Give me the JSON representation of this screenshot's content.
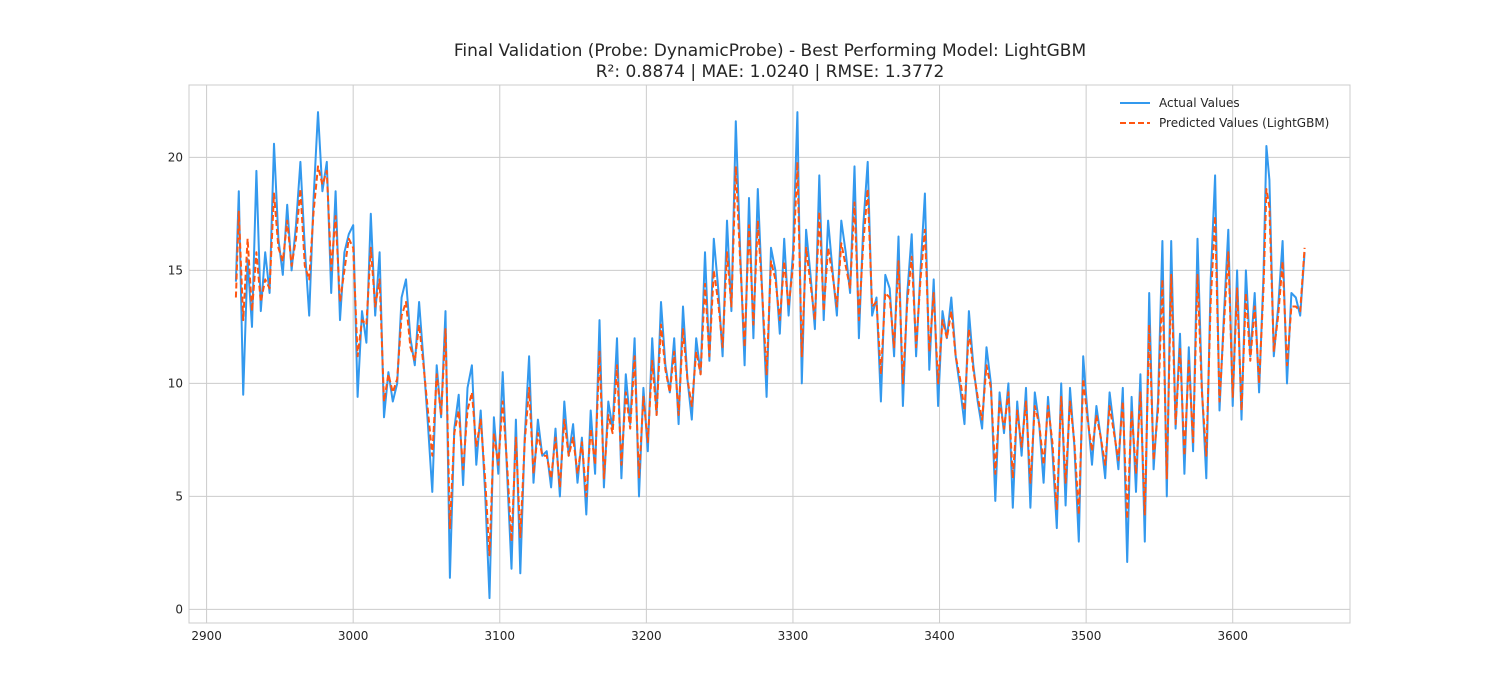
{
  "chart_data": {
    "type": "line",
    "title": "Final Validation (Probe: DynamicProbe) - Best Performing Model: LightGBM",
    "subtitle": "R²: 0.8874  |  MAE: 1.0240  |  RMSE: 1.3772",
    "xlabel": "",
    "ylabel": "",
    "xlim": [
      2888,
      3680
    ],
    "ylim": [
      -0.6,
      23.2
    ],
    "xticks": [
      2900,
      3000,
      3100,
      3200,
      3300,
      3400,
      3500,
      3600
    ],
    "yticks": [
      0,
      5,
      10,
      15,
      20
    ],
    "grid": true,
    "legend_position": "top-right",
    "series": [
      {
        "name": "Actual Values",
        "color": "#3399ee",
        "style": "solid",
        "x": [
          2920,
          2922,
          2925,
          2928,
          2931,
          2934,
          2937,
          2940,
          2943,
          2946,
          2949,
          2952,
          2955,
          2958,
          2961,
          2964,
          2967,
          2970,
          2973,
          2976,
          2979,
          2982,
          2985,
          2988,
          2991,
          2994,
          2997,
          3000,
          3003,
          3006,
          3009,
          3012,
          3015,
          3018,
          3021,
          3024,
          3027,
          3030,
          3033,
          3036,
          3039,
          3042,
          3045,
          3048,
          3051,
          3054,
          3057,
          3060,
          3063,
          3066,
          3069,
          3072,
          3075,
          3078,
          3081,
          3084,
          3087,
          3090,
          3093,
          3096,
          3099,
          3102,
          3105,
          3108,
          3111,
          3114,
          3117,
          3120,
          3123,
          3126,
          3129,
          3132,
          3135,
          3138,
          3141,
          3144,
          3147,
          3150,
          3153,
          3156,
          3159,
          3162,
          3165,
          3168,
          3171,
          3174,
          3177,
          3180,
          3183,
          3186,
          3189,
          3192,
          3195,
          3198,
          3201,
          3204,
          3207,
          3210,
          3213,
          3216,
          3219,
          3222,
          3225,
          3228,
          3231,
          3234,
          3237,
          3240,
          3243,
          3246,
          3249,
          3252,
          3255,
          3258,
          3261,
          3264,
          3267,
          3270,
          3273,
          3276,
          3279,
          3282,
          3285,
          3288,
          3291,
          3294,
          3297,
          3300,
          3303,
          3306,
          3309,
          3312,
          3315,
          3318,
          3321,
          3324,
          3327,
          3330,
          3333,
          3336,
          3339,
          3342,
          3345,
          3348,
          3351,
          3354,
          3357,
          3360,
          3363,
          3366,
          3369,
          3372,
          3375,
          3378,
          3381,
          3384,
          3387,
          3390,
          3393,
          3396,
          3399,
          3402,
          3405,
          3408,
          3411,
          3414,
          3417,
          3420,
          3423,
          3426,
          3429,
          3432,
          3435,
          3438,
          3441,
          3444,
          3447,
          3450,
          3453,
          3456,
          3459,
          3462,
          3465,
          3468,
          3471,
          3474,
          3477,
          3480,
          3483,
          3486,
          3489,
          3492,
          3495,
          3498,
          3501,
          3504,
          3507,
          3510,
          3513,
          3516,
          3519,
          3522,
          3525,
          3528,
          3531,
          3534,
          3537,
          3540,
          3543,
          3546,
          3549,
          3552,
          3555,
          3558,
          3561,
          3564,
          3567,
          3570,
          3573,
          3576,
          3579,
          3582,
          3585,
          3588,
          3591,
          3594,
          3597,
          3600,
          3603,
          3606,
          3609,
          3612,
          3615,
          3618,
          3621,
          3623,
          3625,
          3628,
          3631,
          3634,
          3637,
          3640,
          3643,
          3646,
          3649
        ],
        "values": [
          14.5,
          18.5,
          9.5,
          15.5,
          12.5,
          19.4,
          13.2,
          15.8,
          14.0,
          20.6,
          16.4,
          14.8,
          17.9,
          15.0,
          17.0,
          19.8,
          16.0,
          13.0,
          18.2,
          22.0,
          18.5,
          19.8,
          14.0,
          18.5,
          12.8,
          15.8,
          16.6,
          17.0,
          9.4,
          13.2,
          11.8,
          17.5,
          13.0,
          15.8,
          8.5,
          10.5,
          9.2,
          10.0,
          13.8,
          14.6,
          12.0,
          10.8,
          13.6,
          11.0,
          8.2,
          5.2,
          10.8,
          8.5,
          13.2,
          1.4,
          8.0,
          9.5,
          5.5,
          9.8,
          10.8,
          6.4,
          8.8,
          5.2,
          0.5,
          8.5,
          6.0,
          10.5,
          6.0,
          1.8,
          8.4,
          1.6,
          7.6,
          11.2,
          5.6,
          8.4,
          6.8,
          7.0,
          5.4,
          8.0,
          5.0,
          9.2,
          6.8,
          8.2,
          5.6,
          7.6,
          4.2,
          8.8,
          6.0,
          12.8,
          5.4,
          9.2,
          8.0,
          12.0,
          5.8,
          10.4,
          8.2,
          12.0,
          5.0,
          9.8,
          7.0,
          12.0,
          8.6,
          13.6,
          10.8,
          9.6,
          12.0,
          8.2,
          13.4,
          10.2,
          8.4,
          12.0,
          10.4,
          15.8,
          11.0,
          16.4,
          14.2,
          11.2,
          17.2,
          13.2,
          21.6,
          15.8,
          10.8,
          18.2,
          12.0,
          18.6,
          14.0,
          9.4,
          16.0,
          15.0,
          12.2,
          16.4,
          13.0,
          15.8,
          22.0,
          10.0,
          16.8,
          14.8,
          12.4,
          19.2,
          12.8,
          17.2,
          15.0,
          13.0,
          17.2,
          15.8,
          14.0,
          19.6,
          12.0,
          17.0,
          19.8,
          13.0,
          13.8,
          9.2,
          14.8,
          14.2,
          11.2,
          16.5,
          9.0,
          14.0,
          16.6,
          11.2,
          15.0,
          18.4,
          10.6,
          14.6,
          9.0,
          13.2,
          12.0,
          13.8,
          11.2,
          9.8,
          8.2,
          13.2,
          10.8,
          9.2,
          8.0,
          11.6,
          10.0,
          4.8,
          9.6,
          7.8,
          10.0,
          4.5,
          9.2,
          6.8,
          9.8,
          4.5,
          9.6,
          8.2,
          5.6,
          9.4,
          7.0,
          3.6,
          10.0,
          4.6,
          9.8,
          7.2,
          3.0,
          11.2,
          8.6,
          6.4,
          9.0,
          7.6,
          5.8,
          9.6,
          8.0,
          6.2,
          9.8,
          2.1,
          9.4,
          5.2,
          10.4,
          3.0,
          14.0,
          6.2,
          9.2,
          16.3,
          5.0,
          16.3,
          8.0,
          12.2,
          6.0,
          11.6,
          7.0,
          16.4,
          9.8,
          5.8,
          14.6,
          19.2,
          8.8,
          13.0,
          16.8,
          9.0,
          15.0,
          8.4,
          15.0,
          11.2,
          14.0,
          9.6,
          14.8,
          20.5,
          19.0,
          11.2,
          13.4,
          16.3,
          10.0,
          14.0,
          13.8,
          13.0,
          15.8
        ],
        "x_lim_note": ""
      },
      {
        "name": "Predicted Values (LightGBM)",
        "color": "#ff5511",
        "style": "dashed",
        "x": [
          2920,
          2922,
          2925,
          2928,
          2931,
          2934,
          2937,
          2940,
          2943,
          2946,
          2949,
          2952,
          2955,
          2958,
          2961,
          2964,
          2967,
          2970,
          2973,
          2976,
          2979,
          2982,
          2985,
          2988,
          2991,
          2994,
          2997,
          3000,
          3003,
          3006,
          3009,
          3012,
          3015,
          3018,
          3021,
          3024,
          3027,
          3030,
          3033,
          3036,
          3039,
          3042,
          3045,
          3048,
          3051,
          3054,
          3057,
          3060,
          3063,
          3066,
          3069,
          3072,
          3075,
          3078,
          3081,
          3084,
          3087,
          3090,
          3093,
          3096,
          3099,
          3102,
          3105,
          3108,
          3111,
          3114,
          3117,
          3120,
          3123,
          3126,
          3129,
          3132,
          3135,
          3138,
          3141,
          3144,
          3147,
          3150,
          3153,
          3156,
          3159,
          3162,
          3165,
          3168,
          3171,
          3174,
          3177,
          3180,
          3183,
          3186,
          3189,
          3192,
          3195,
          3198,
          3201,
          3204,
          3207,
          3210,
          3213,
          3216,
          3219,
          3222,
          3225,
          3228,
          3231,
          3234,
          3237,
          3240,
          3243,
          3246,
          3249,
          3252,
          3255,
          3258,
          3261,
          3264,
          3267,
          3270,
          3273,
          3276,
          3279,
          3282,
          3285,
          3288,
          3291,
          3294,
          3297,
          3300,
          3303,
          3306,
          3309,
          3312,
          3315,
          3318,
          3321,
          3324,
          3327,
          3330,
          3333,
          3336,
          3339,
          3342,
          3345,
          3348,
          3351,
          3354,
          3357,
          3360,
          3363,
          3366,
          3369,
          3372,
          3375,
          3378,
          3381,
          3384,
          3387,
          3390,
          3393,
          3396,
          3399,
          3402,
          3405,
          3408,
          3411,
          3414,
          3417,
          3420,
          3423,
          3426,
          3429,
          3432,
          3435,
          3438,
          3441,
          3444,
          3447,
          3450,
          3453,
          3456,
          3459,
          3462,
          3465,
          3468,
          3471,
          3474,
          3477,
          3480,
          3483,
          3486,
          3489,
          3492,
          3495,
          3498,
          3501,
          3504,
          3507,
          3510,
          3513,
          3516,
          3519,
          3522,
          3525,
          3528,
          3531,
          3534,
          3537,
          3540,
          3543,
          3546,
          3549,
          3552,
          3555,
          3558,
          3561,
          3564,
          3567,
          3570,
          3573,
          3576,
          3579,
          3582,
          3585,
          3588,
          3591,
          3594,
          3597,
          3600,
          3603,
          3606,
          3609,
          3612,
          3615,
          3618,
          3621,
          3623,
          3625,
          3628,
          3631,
          3634,
          3637,
          3640,
          3643,
          3646,
          3649
        ],
        "values": [
          13.8,
          17.6,
          12.8,
          16.4,
          13.2,
          15.8,
          13.6,
          14.6,
          14.2,
          18.4,
          16.0,
          15.4,
          17.2,
          15.2,
          16.4,
          18.6,
          15.2,
          14.6,
          17.6,
          19.6,
          18.8,
          19.4,
          15.0,
          17.4,
          13.6,
          15.0,
          16.4,
          16.0,
          11.2,
          12.8,
          12.6,
          16.0,
          13.4,
          14.6,
          9.2,
          10.4,
          9.6,
          10.2,
          13.0,
          13.6,
          11.6,
          11.0,
          12.6,
          10.8,
          8.8,
          6.8,
          10.4,
          8.6,
          12.4,
          3.6,
          7.8,
          8.8,
          6.2,
          8.8,
          9.6,
          7.2,
          8.4,
          5.8,
          2.4,
          7.8,
          6.4,
          9.2,
          6.4,
          3.0,
          7.6,
          3.2,
          7.4,
          9.8,
          6.0,
          7.8,
          6.8,
          6.8,
          5.8,
          7.6,
          5.4,
          8.4,
          6.8,
          7.6,
          6.0,
          7.4,
          5.0,
          8.0,
          6.4,
          11.4,
          5.8,
          8.6,
          7.8,
          10.8,
          6.4,
          9.6,
          8.0,
          11.2,
          5.8,
          9.4,
          7.4,
          11.0,
          8.6,
          12.6,
          10.6,
          9.6,
          11.4,
          8.6,
          12.4,
          10.2,
          9.0,
          11.4,
          10.4,
          14.4,
          11.2,
          15.0,
          13.6,
          11.6,
          15.8,
          13.4,
          19.6,
          15.4,
          11.6,
          17.0,
          12.6,
          17.2,
          14.0,
          10.4,
          15.4,
          14.6,
          12.8,
          15.4,
          13.4,
          15.2,
          19.8,
          11.2,
          16.0,
          14.4,
          12.8,
          17.6,
          13.2,
          16.0,
          14.8,
          13.4,
          16.2,
          15.2,
          14.2,
          18.0,
          12.8,
          16.2,
          18.6,
          13.4,
          13.6,
          10.4,
          14.0,
          13.8,
          11.6,
          15.4,
          10.0,
          13.6,
          15.6,
          11.6,
          14.6,
          16.8,
          11.4,
          14.0,
          10.0,
          12.8,
          12.0,
          13.2,
          11.2,
          10.2,
          8.8,
          12.4,
          10.6,
          9.4,
          8.4,
          10.8,
          9.8,
          6.0,
          9.2,
          8.0,
          9.6,
          5.8,
          8.8,
          7.2,
          9.2,
          5.6,
          9.0,
          8.2,
          6.4,
          9.0,
          7.4,
          4.4,
          9.4,
          5.6,
          9.2,
          7.4,
          4.2,
          10.2,
          8.4,
          7.0,
          8.6,
          7.6,
          6.4,
          9.0,
          7.8,
          6.6,
          9.2,
          4.0,
          8.8,
          6.0,
          9.6,
          4.2,
          12.6,
          6.6,
          8.8,
          14.6,
          5.8,
          14.8,
          8.2,
          11.6,
          6.8,
          11.0,
          7.4,
          14.8,
          9.6,
          6.8,
          13.6,
          17.4,
          9.2,
          12.6,
          15.8,
          9.4,
          14.2,
          8.8,
          14.0,
          11.0,
          13.4,
          10.0,
          14.2,
          18.6,
          17.8,
          11.4,
          13.0,
          15.4,
          10.8,
          13.4,
          13.4,
          13.2,
          16.0
        ]
      }
    ]
  }
}
